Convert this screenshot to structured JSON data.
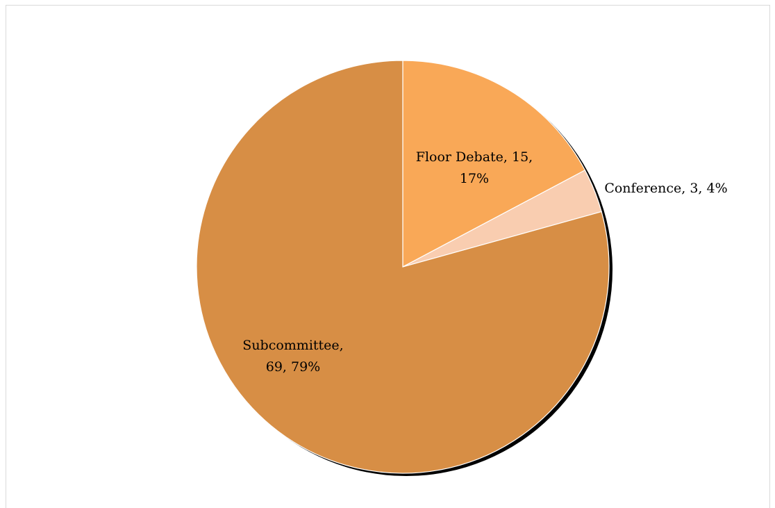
{
  "chart_data": {
    "type": "pie",
    "title": "",
    "slices": [
      {
        "label": "Floor Debate",
        "value": 15,
        "percent": "17%",
        "color": "#f9a857",
        "label_lines": [
          "Floor Debate, 15,",
          "17%"
        ]
      },
      {
        "label": "Conference",
        "value": 3,
        "percent": "4%",
        "color": "#f9cdb0",
        "label_lines": [
          "Conference, 3, 4%"
        ]
      },
      {
        "label": "Subcommittee",
        "value": 69,
        "percent": "79%",
        "color": "#d78e45",
        "label_lines": [
          "Subcommittee,",
          "69, 79%"
        ]
      }
    ],
    "legend": "none"
  }
}
